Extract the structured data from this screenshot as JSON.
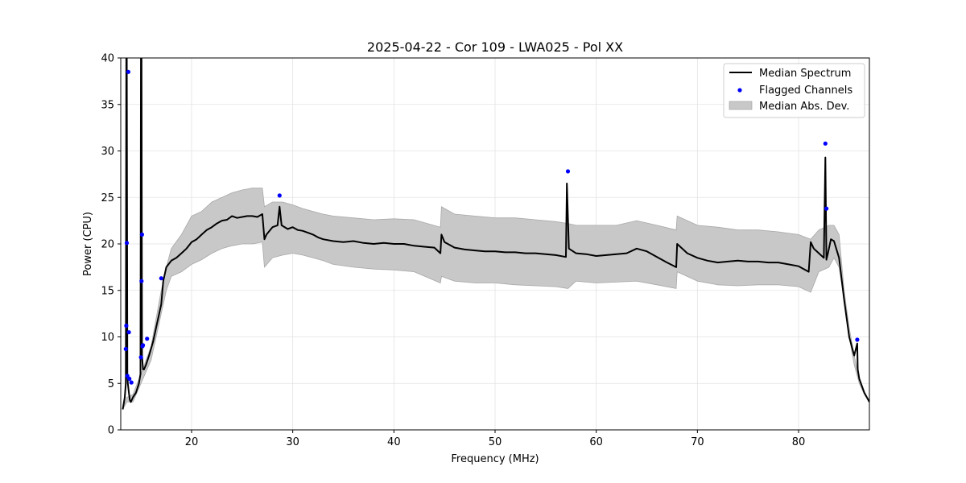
{
  "chart_data": {
    "type": "line",
    "title": "2025-04-22 - Cor 109 - LWA025 - Pol XX",
    "xlabel": "Frequency (MHz)",
    "ylabel": "Power (CPU)",
    "xlim": [
      13,
      87
    ],
    "ylim": [
      0,
      40
    ],
    "xticks": [
      20,
      30,
      40,
      50,
      60,
      70,
      80
    ],
    "yticks": [
      0,
      5,
      10,
      15,
      20,
      25,
      30,
      35,
      40
    ],
    "grid": true,
    "legend": {
      "position": "top-right",
      "entries": [
        {
          "label": "Median Spectrum",
          "kind": "line",
          "color": "#000000"
        },
        {
          "label": "Flagged Channels",
          "kind": "marker",
          "color": "#0000ff"
        },
        {
          "label": "Median Abs. Dev.",
          "kind": "patch",
          "color": "#bfbfbf"
        }
      ]
    },
    "series": [
      {
        "name": "Median Spectrum",
        "color": "#000000",
        "x": [
          13.2,
          13.4,
          13.5,
          13.55,
          13.6,
          13.65,
          13.7,
          13.8,
          13.9,
          14.0,
          14.2,
          14.5,
          14.8,
          14.95,
          15.0,
          15.05,
          15.1,
          15.2,
          15.3,
          15.5,
          15.8,
          16.2,
          16.6,
          17.0,
          17.2,
          17.5,
          18.0,
          18.5,
          19.0,
          19.5,
          20.0,
          20.5,
          21.0,
          21.5,
          22.0,
          22.5,
          23.0,
          23.5,
          24.0,
          24.5,
          25.0,
          25.5,
          26.0,
          26.5,
          27.0,
          27.2,
          27.4,
          28.0,
          28.5,
          28.7,
          28.9,
          29.5,
          30.0,
          30.5,
          31.0,
          31.5,
          32.0,
          32.5,
          33.0,
          34.0,
          35.0,
          36.0,
          37.0,
          38.0,
          39.0,
          40.0,
          41.0,
          42.0,
          43.0,
          44.0,
          44.6,
          44.7,
          45.0,
          46.0,
          47.0,
          48.0,
          49.0,
          50.0,
          51.0,
          52.0,
          53.0,
          54.0,
          55.0,
          56.0,
          57.0,
          57.1,
          57.3,
          58.0,
          59.0,
          60.0,
          61.0,
          62.0,
          63.0,
          64.0,
          65.0,
          66.0,
          67.0,
          67.9,
          68.0,
          69.0,
          70.0,
          71.0,
          72.0,
          73.0,
          74.0,
          75.0,
          76.0,
          77.0,
          78.0,
          79.0,
          80.0,
          81.0,
          81.2,
          81.5,
          82.0,
          82.5,
          82.65,
          82.75,
          82.9,
          83.2,
          83.5,
          84.0,
          84.5,
          85.0,
          85.5,
          85.8,
          85.85,
          86.0,
          86.5,
          87.0
        ],
        "values": [
          2.2,
          3.5,
          5.0,
          40.0,
          40.0,
          6.0,
          5.0,
          4.0,
          3.2,
          3.0,
          3.5,
          4.0,
          5.0,
          6.0,
          40.0,
          40.0,
          8.0,
          6.5,
          6.5,
          7.0,
          8.0,
          9.5,
          11.5,
          13.5,
          16.0,
          17.5,
          18.2,
          18.5,
          19.0,
          19.5,
          20.2,
          20.5,
          21.0,
          21.5,
          21.8,
          22.2,
          22.5,
          22.6,
          23.0,
          22.8,
          22.9,
          23.0,
          23.0,
          22.9,
          23.2,
          20.5,
          21.0,
          21.8,
          22.0,
          24.0,
          22.0,
          21.6,
          21.8,
          21.5,
          21.4,
          21.2,
          21.0,
          20.7,
          20.5,
          20.3,
          20.2,
          20.3,
          20.1,
          20.0,
          20.1,
          20.0,
          20.0,
          19.8,
          19.7,
          19.6,
          19.0,
          21.0,
          20.2,
          19.6,
          19.4,
          19.3,
          19.2,
          19.2,
          19.1,
          19.1,
          19.0,
          19.0,
          18.9,
          18.8,
          18.6,
          26.5,
          19.5,
          19.0,
          18.9,
          18.7,
          18.8,
          18.9,
          19.0,
          19.5,
          19.2,
          18.6,
          18.0,
          17.5,
          20.0,
          19.0,
          18.5,
          18.2,
          18.0,
          18.1,
          18.2,
          18.1,
          18.1,
          18.0,
          18.0,
          17.8,
          17.6,
          17.0,
          20.2,
          19.5,
          19.0,
          18.5,
          29.3,
          18.3,
          19.0,
          20.5,
          20.3,
          18.5,
          14.0,
          10.0,
          8.0,
          9.3,
          6.5,
          5.5,
          4.0,
          3.0
        ]
      },
      {
        "name": "Median Abs. Dev.",
        "kind": "band",
        "color": "#bfbfbf",
        "x": [
          13.2,
          13.6,
          14.2,
          15.0,
          16.0,
          17.0,
          17.5,
          18.0,
          19.0,
          20.0,
          21.0,
          22.0,
          23.0,
          24.0,
          25.0,
          26.0,
          27.0,
          27.2,
          28.0,
          29.0,
          30.0,
          31.0,
          32.0,
          33.0,
          34.0,
          36.0,
          38.0,
          40.0,
          42.0,
          44.6,
          44.7,
          46.0,
          48.0,
          50.0,
          52.0,
          54.0,
          56.0,
          57.2,
          58.0,
          60.0,
          62.0,
          64.0,
          66.0,
          67.9,
          68.0,
          70.0,
          72.0,
          74.0,
          76.0,
          78.0,
          80.0,
          81.2,
          82.0,
          83.0,
          83.5,
          84.0,
          84.5,
          85.0,
          85.5,
          86.0,
          86.5,
          87.0
        ],
        "lower": [
          2.2,
          3.0,
          3.0,
          5.0,
          7.5,
          12.5,
          15.0,
          16.5,
          17.0,
          17.8,
          18.3,
          19.0,
          19.5,
          19.8,
          20.0,
          20.0,
          20.2,
          17.5,
          18.5,
          18.8,
          19.0,
          18.8,
          18.5,
          18.2,
          17.8,
          17.5,
          17.3,
          17.2,
          17.0,
          15.8,
          16.5,
          16.0,
          15.8,
          15.8,
          15.6,
          15.5,
          15.4,
          15.2,
          16.0,
          15.8,
          15.9,
          16.0,
          15.6,
          15.2,
          17.0,
          16.0,
          15.6,
          15.5,
          15.6,
          15.6,
          15.4,
          14.8,
          17.0,
          17.5,
          18.5,
          17.5,
          14.0,
          10.0,
          7.0,
          5.0,
          3.8,
          3.0
        ],
        "upper": [
          2.2,
          3.5,
          3.8,
          6.0,
          9.0,
          15.0,
          17.5,
          19.5,
          21.0,
          23.0,
          23.5,
          24.5,
          25.0,
          25.5,
          25.8,
          26.0,
          26.0,
          24.0,
          24.5,
          24.5,
          24.2,
          23.8,
          23.5,
          23.2,
          23.0,
          22.8,
          22.6,
          22.7,
          22.6,
          21.8,
          24.0,
          23.2,
          23.0,
          22.8,
          22.8,
          22.6,
          22.4,
          22.2,
          22.0,
          22.0,
          22.0,
          22.5,
          22.0,
          21.5,
          23.0,
          22.0,
          21.8,
          21.5,
          21.5,
          21.3,
          21.0,
          20.5,
          21.5,
          22.0,
          22.0,
          21.0,
          15.0,
          11.0,
          8.0,
          5.5,
          4.0,
          3.0
        ]
      },
      {
        "name": "Flagged Channels",
        "kind": "scatter",
        "color": "#0000ff",
        "x": [
          13.5,
          13.55,
          13.6,
          13.65,
          13.75,
          13.8,
          13.85,
          14.05,
          15.0,
          15.05,
          15.1,
          15.15,
          15.2,
          15.6,
          17.0,
          28.7,
          57.2,
          82.65,
          82.75,
          85.8
        ],
        "values": [
          8.7,
          11.2,
          20.1,
          5.8,
          38.5,
          10.5,
          5.5,
          5.1,
          7.8,
          16.0,
          21.0,
          9.0,
          9.1,
          9.8,
          16.3,
          25.2,
          27.8,
          30.8,
          23.8,
          9.7
        ]
      }
    ]
  }
}
